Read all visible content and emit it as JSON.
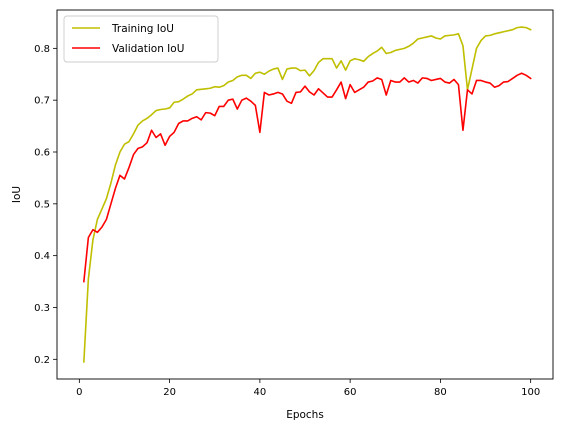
{
  "chart_data": {
    "type": "line",
    "xlabel": "Epochs",
    "ylabel": "IoU",
    "xlim": [
      -4.95,
      104.95
    ],
    "ylim": [
      0.162,
      0.874
    ],
    "xticks": [
      0,
      20,
      40,
      60,
      80,
      100
    ],
    "yticks": [
      0.2,
      0.3,
      0.4,
      0.5,
      0.6,
      0.7,
      0.8
    ],
    "xtick_labels": [
      "0",
      "20",
      "40",
      "60",
      "80",
      "100"
    ],
    "ytick_labels": [
      "0.2",
      "0.3",
      "0.4",
      "0.5",
      "0.6",
      "0.7",
      "0.8"
    ],
    "grid": false,
    "legend": "top-left",
    "x": [
      1,
      2,
      3,
      4,
      5,
      6,
      7,
      8,
      9,
      10,
      11,
      12,
      13,
      14,
      15,
      16,
      17,
      18,
      19,
      20,
      21,
      22,
      23,
      24,
      25,
      26,
      27,
      28,
      29,
      30,
      31,
      32,
      33,
      34,
      35,
      36,
      37,
      38,
      39,
      40,
      41,
      42,
      43,
      44,
      45,
      46,
      47,
      48,
      49,
      50,
      51,
      52,
      53,
      54,
      55,
      56,
      57,
      58,
      59,
      60,
      61,
      62,
      63,
      64,
      65,
      66,
      67,
      68,
      69,
      70,
      71,
      72,
      73,
      74,
      75,
      76,
      77,
      78,
      79,
      80,
      81,
      82,
      83,
      84,
      85,
      86,
      87,
      88,
      89,
      90,
      91,
      92,
      93,
      94,
      95,
      96,
      97,
      98,
      99,
      100
    ],
    "series": [
      {
        "name": "Training IoU",
        "color": "#bfbf00",
        "values": [
          0.195,
          0.355,
          0.43,
          0.47,
          0.49,
          0.51,
          0.54,
          0.575,
          0.6,
          0.615,
          0.62,
          0.635,
          0.652,
          0.66,
          0.665,
          0.672,
          0.68,
          0.682,
          0.683,
          0.685,
          0.696,
          0.697,
          0.702,
          0.708,
          0.712,
          0.72,
          0.721,
          0.722,
          0.723,
          0.726,
          0.725,
          0.728,
          0.735,
          0.738,
          0.745,
          0.748,
          0.748,
          0.742,
          0.752,
          0.754,
          0.75,
          0.756,
          0.76,
          0.762,
          0.74,
          0.76,
          0.762,
          0.762,
          0.757,
          0.758,
          0.747,
          0.757,
          0.773,
          0.78,
          0.78,
          0.78,
          0.762,
          0.776,
          0.758,
          0.776,
          0.78,
          0.778,
          0.775,
          0.784,
          0.79,
          0.795,
          0.802,
          0.79,
          0.792,
          0.796,
          0.798,
          0.8,
          0.804,
          0.81,
          0.818,
          0.82,
          0.822,
          0.824,
          0.82,
          0.818,
          0.824,
          0.825,
          0.826,
          0.828,
          0.805,
          0.72,
          0.76,
          0.8,
          0.815,
          0.824,
          0.825,
          0.828,
          0.83,
          0.832,
          0.834,
          0.836,
          0.84,
          0.841,
          0.84,
          0.836
        ]
      },
      {
        "name": "Validation IoU",
        "color": "#ff0000",
        "values": [
          0.35,
          0.435,
          0.45,
          0.445,
          0.455,
          0.47,
          0.5,
          0.53,
          0.555,
          0.548,
          0.57,
          0.595,
          0.607,
          0.61,
          0.618,
          0.642,
          0.628,
          0.635,
          0.613,
          0.63,
          0.638,
          0.655,
          0.66,
          0.66,
          0.665,
          0.668,
          0.662,
          0.676,
          0.675,
          0.67,
          0.688,
          0.688,
          0.7,
          0.702,
          0.683,
          0.7,
          0.704,
          0.698,
          0.69,
          0.638,
          0.715,
          0.71,
          0.712,
          0.715,
          0.712,
          0.698,
          0.694,
          0.715,
          0.716,
          0.727,
          0.716,
          0.71,
          0.722,
          0.714,
          0.706,
          0.706,
          0.72,
          0.735,
          0.703,
          0.73,
          0.715,
          0.72,
          0.725,
          0.735,
          0.737,
          0.743,
          0.74,
          0.71,
          0.738,
          0.735,
          0.735,
          0.743,
          0.735,
          0.738,
          0.733,
          0.743,
          0.742,
          0.738,
          0.74,
          0.742,
          0.735,
          0.733,
          0.74,
          0.73,
          0.642,
          0.72,
          0.712,
          0.738,
          0.738,
          0.735,
          0.733,
          0.725,
          0.728,
          0.735,
          0.736,
          0.742,
          0.748,
          0.752,
          0.748,
          0.742
        ]
      }
    ]
  }
}
